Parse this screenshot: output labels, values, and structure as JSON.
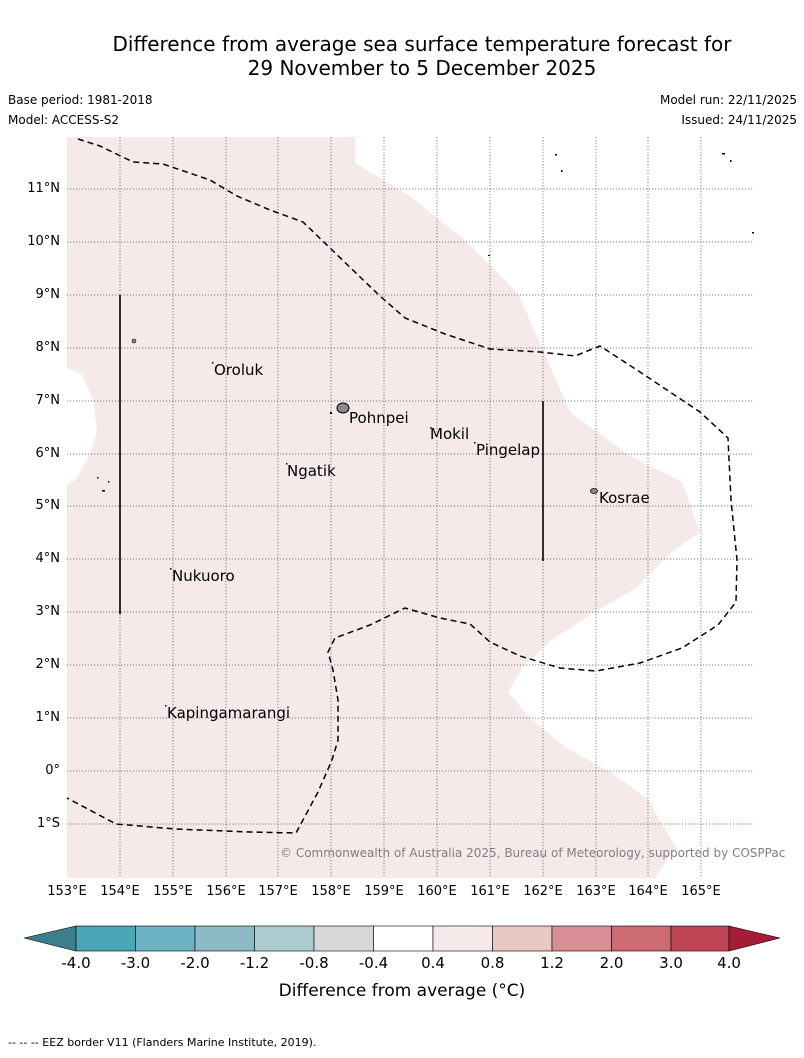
{
  "title_line1": "Difference from average sea surface temperature forecast for",
  "title_line2": "29 November to 5 December 2025",
  "base_period": "Base period: 1981-2018",
  "model": "Model: ACCESS-S2",
  "model_run": "Model run: 22/11/2025",
  "issued": "Issued: 24/11/2025",
  "copyright": "© Commonwealth of Australia 2025, Bureau of Meteorology, supported by COSPPac",
  "footer": "--  --  -- EEZ border V11 (Flanders Marine Institute, 2019).",
  "places": {
    "oroluk": "Oroluk",
    "pohnpei": "Pohnpei",
    "mokil": "Mokil",
    "pingelap": "Pingelap",
    "ngatik": "Ngatik",
    "kosrae": "Kosrae",
    "nukuoro": "Nukuoro",
    "kapingamarangi": "Kapingamarangi"
  },
  "lat_labels": [
    "11°N",
    "10°N",
    "9°N",
    "8°N",
    "7°N",
    "6°N",
    "5°N",
    "4°N",
    "3°N",
    "2°N",
    "1°N",
    "0°",
    "1°S"
  ],
  "lon_labels": [
    "153°E",
    "154°E",
    "155°E",
    "156°E",
    "157°E",
    "158°E",
    "159°E",
    "160°E",
    "161°E",
    "162°E",
    "163°E",
    "164°E",
    "165°E"
  ],
  "colorbar": {
    "label": "Difference from average (°C)",
    "ticks": [
      "-4.0",
      "-3.0",
      "-2.0",
      "-1.2",
      "-0.8",
      "-0.4",
      "0.4",
      "0.8",
      "1.2",
      "2.0",
      "3.0",
      "4.0"
    ],
    "colors": [
      "#3b7f8c",
      "#4aa6b6",
      "#6cb2c2",
      "#8cbac6",
      "#abcbcf",
      "#d8d8d8",
      "#ffffff",
      "#f5eae9",
      "#e9c7c2",
      "#d98e95",
      "#cd6b72",
      "#c04554",
      "#a51c36"
    ]
  },
  "map_colors": {
    "anomaly_fill": "#f5eae9",
    "ocean": "#ffffff"
  }
}
